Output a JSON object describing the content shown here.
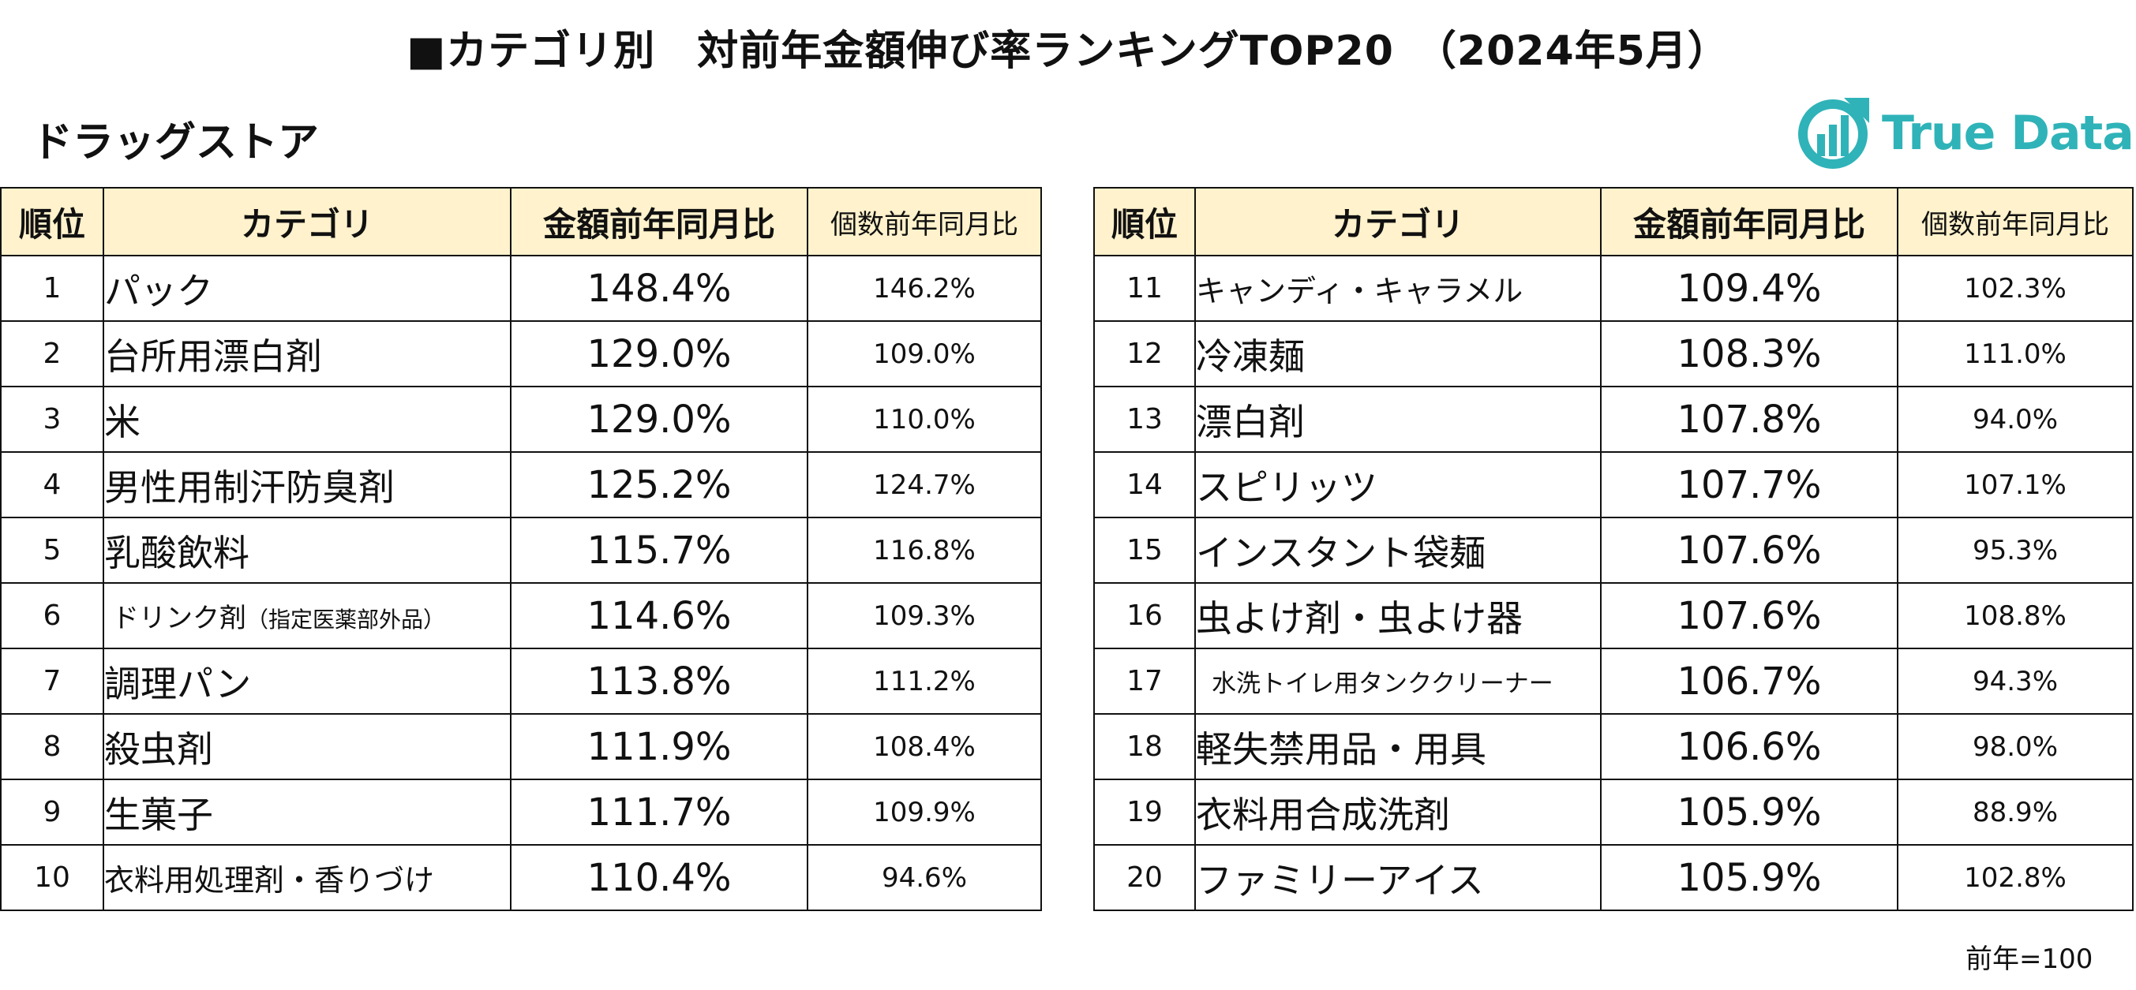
{
  "title": "■カテゴリ別　対前年金額伸び率ランキングTOP20　（2024年5月）",
  "subtitle": "ドラッグストア",
  "logo_text": "True Data",
  "footnote": "前年=100",
  "colors": {
    "header_bg": "#fff2cc",
    "logo": "#2fb3b8"
  },
  "headers": {
    "rank": "順位",
    "category": "カテゴリ",
    "amount": "金額前年同月比",
    "quantity": "個数前年同月比"
  },
  "chart_data": {
    "type": "table",
    "title": "■カテゴリ別　対前年金額伸び率ランキングTOP20　（2024年5月）",
    "columns": [
      "順位",
      "カテゴリ",
      "金額前年同月比",
      "個数前年同月比"
    ],
    "left_rows": [
      {
        "rank": "1",
        "category": "パック",
        "amount": "148.4%",
        "quantity": "146.2%"
      },
      {
        "rank": "2",
        "category": "台所用漂白剤",
        "amount": "129.0%",
        "quantity": "109.0%"
      },
      {
        "rank": "3",
        "category": "米",
        "amount": "129.0%",
        "quantity": "110.0%"
      },
      {
        "rank": "4",
        "category": "男性用制汗防臭剤",
        "amount": "125.2%",
        "quantity": "124.7%"
      },
      {
        "rank": "5",
        "category": "乳酸飲料",
        "amount": "115.7%",
        "quantity": "116.8%"
      },
      {
        "rank": "6",
        "category": "ドリンク剤",
        "category_note": "（指定医薬部外品）",
        "amount": "114.6%",
        "quantity": "109.3%"
      },
      {
        "rank": "7",
        "category": "調理パン",
        "amount": "113.8%",
        "quantity": "111.2%"
      },
      {
        "rank": "8",
        "category": "殺虫剤",
        "amount": "111.9%",
        "quantity": "108.4%"
      },
      {
        "rank": "9",
        "category": "生菓子",
        "amount": "111.7%",
        "quantity": "109.9%"
      },
      {
        "rank": "10",
        "category": "衣料用処理剤・香りづけ",
        "amount": "110.4%",
        "quantity": "94.6%"
      }
    ],
    "right_rows": [
      {
        "rank": "11",
        "category": "キャンディ・キャラメル",
        "amount": "109.4%",
        "quantity": "102.3%"
      },
      {
        "rank": "12",
        "category": "冷凍麺",
        "amount": "108.3%",
        "quantity": "111.0%"
      },
      {
        "rank": "13",
        "category": "漂白剤",
        "amount": "107.8%",
        "quantity": "94.0%"
      },
      {
        "rank": "14",
        "category": "スピリッツ",
        "amount": "107.7%",
        "quantity": "107.1%"
      },
      {
        "rank": "15",
        "category": "インスタント袋麺",
        "amount": "107.6%",
        "quantity": "95.3%"
      },
      {
        "rank": "16",
        "category": "虫よけ剤・虫よけ器",
        "amount": "107.6%",
        "quantity": "108.8%"
      },
      {
        "rank": "17",
        "category": "水洗トイレ用タンククリーナー",
        "amount": "106.7%",
        "quantity": "94.3%"
      },
      {
        "rank": "18",
        "category": "軽失禁用品・用具",
        "amount": "106.6%",
        "quantity": "98.0%"
      },
      {
        "rank": "19",
        "category": "衣料用合成洗剤",
        "amount": "105.9%",
        "quantity": "88.9%"
      },
      {
        "rank": "20",
        "category": "ファミリーアイス",
        "amount": "105.9%",
        "quantity": "102.8%"
      }
    ]
  }
}
